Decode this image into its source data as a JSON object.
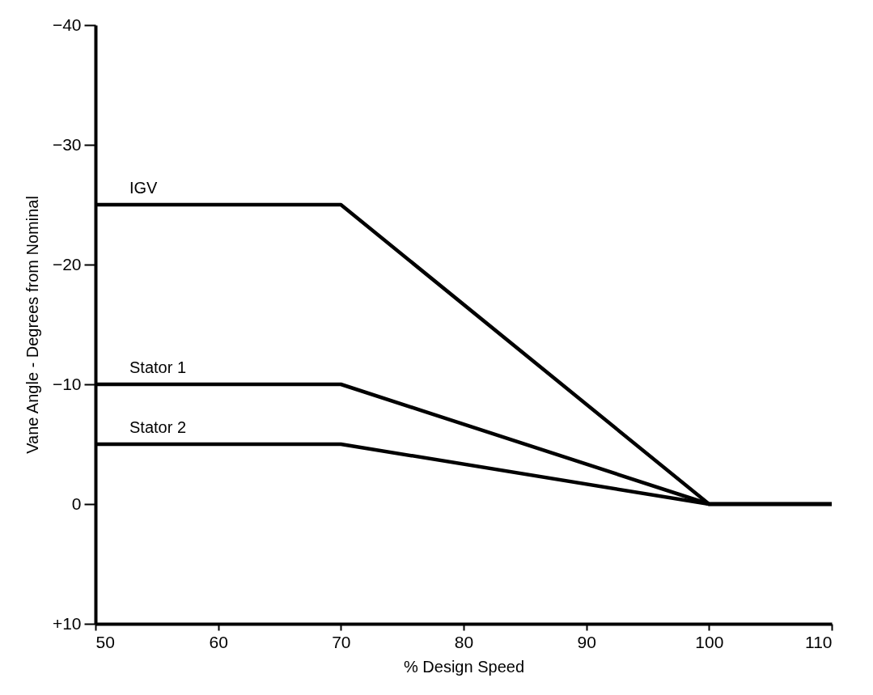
{
  "chart_data": {
    "type": "line",
    "xlabel": "% Design Speed",
    "ylabel": "Vane Angle - Degrees from Nominal",
    "x": [
      50,
      70,
      100,
      110
    ],
    "series": [
      {
        "name": "IGV",
        "color": "#000000",
        "values": [
          -25,
          -25,
          0,
          0
        ]
      },
      {
        "name": "Stator 1",
        "color": "#000000",
        "values": [
          -10,
          -10,
          0,
          0
        ]
      },
      {
        "name": "Stator 2",
        "color": "#000000",
        "values": [
          -5,
          -5,
          0,
          0
        ]
      }
    ],
    "xlim": [
      50,
      110
    ],
    "xticks": [
      50,
      60,
      70,
      80,
      90,
      100,
      110
    ],
    "ylim": [
      10,
      -40
    ],
    "yticks": [
      -40,
      -30,
      -20,
      -10,
      0,
      {
        "value": 10,
        "label": "+10"
      }
    ],
    "grid": false,
    "legend": false,
    "marker": "none",
    "line_style": "solid"
  }
}
